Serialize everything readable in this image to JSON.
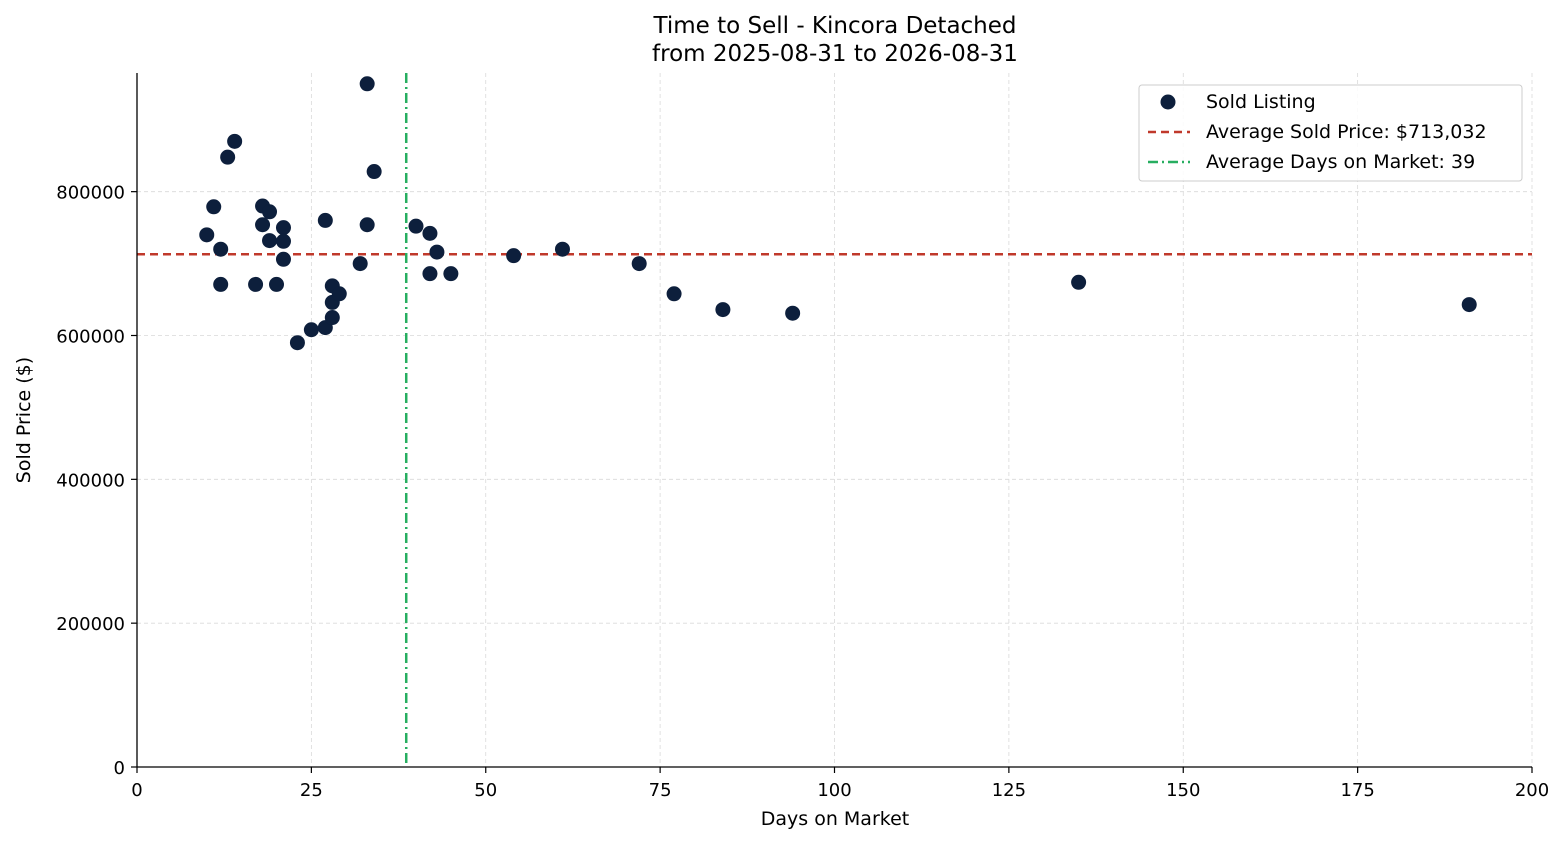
{
  "chart_data": {
    "type": "scatter",
    "title": "Time to Sell - Kincora Detached",
    "subtitle": "from 2025-08-31 to 2026-08-31",
    "xlabel": "Days on Market",
    "ylabel": "Sold Price ($)",
    "xlim": [
      0,
      200
    ],
    "ylim": [
      0,
      965000
    ],
    "x_ticks": [
      0,
      25,
      50,
      75,
      100,
      125,
      150,
      175,
      200
    ],
    "y_ticks": [
      0,
      200000,
      400000,
      600000,
      800000
    ],
    "x_tick_labels": [
      "0",
      "25",
      "50",
      "75",
      "100",
      "125",
      "150",
      "175",
      "200"
    ],
    "y_tick_labels": [
      "0",
      "200000",
      "400000",
      "600000",
      "800000"
    ],
    "grid": true,
    "legend_position": "top-right",
    "colors": {
      "points": "#0d1f3c",
      "avg_price_line": "#c0392b",
      "avg_days_line": "#27ae60",
      "grid": "#d9d9d9"
    },
    "series": [
      {
        "name": "Sold Listing",
        "points": [
          {
            "x": 10,
            "y": 740000
          },
          {
            "x": 11,
            "y": 779000
          },
          {
            "x": 12,
            "y": 720000
          },
          {
            "x": 12,
            "y": 671000
          },
          {
            "x": 13,
            "y": 848000
          },
          {
            "x": 14,
            "y": 870000
          },
          {
            "x": 17,
            "y": 671000
          },
          {
            "x": 18,
            "y": 780000
          },
          {
            "x": 18,
            "y": 754000
          },
          {
            "x": 19,
            "y": 772000
          },
          {
            "x": 19,
            "y": 732000
          },
          {
            "x": 20,
            "y": 671000
          },
          {
            "x": 21,
            "y": 750000
          },
          {
            "x": 21,
            "y": 731000
          },
          {
            "x": 21,
            "y": 706000
          },
          {
            "x": 23,
            "y": 590000
          },
          {
            "x": 25,
            "y": 608000
          },
          {
            "x": 27,
            "y": 760000
          },
          {
            "x": 27,
            "y": 611000
          },
          {
            "x": 28,
            "y": 669000
          },
          {
            "x": 28,
            "y": 646000
          },
          {
            "x": 28,
            "y": 625000
          },
          {
            "x": 29,
            "y": 658000
          },
          {
            "x": 32,
            "y": 700000
          },
          {
            "x": 33,
            "y": 950000
          },
          {
            "x": 33,
            "y": 754000
          },
          {
            "x": 34,
            "y": 828000
          },
          {
            "x": 40,
            "y": 752000
          },
          {
            "x": 42,
            "y": 742000
          },
          {
            "x": 42,
            "y": 686000
          },
          {
            "x": 43,
            "y": 716000
          },
          {
            "x": 45,
            "y": 686000
          },
          {
            "x": 54,
            "y": 711000
          },
          {
            "x": 61,
            "y": 720000
          },
          {
            "x": 72,
            "y": 700000
          },
          {
            "x": 77,
            "y": 658000
          },
          {
            "x": 84,
            "y": 636000
          },
          {
            "x": 94,
            "y": 631000
          },
          {
            "x": 135,
            "y": 674000
          },
          {
            "x": 191,
            "y": 643000
          }
        ]
      }
    ],
    "reference_lines": {
      "avg_price": {
        "label": "Average Sold Price: $713,032",
        "value": 713032
      },
      "avg_days": {
        "label": "Average Days on Market: 39",
        "value": 38.6
      }
    }
  }
}
